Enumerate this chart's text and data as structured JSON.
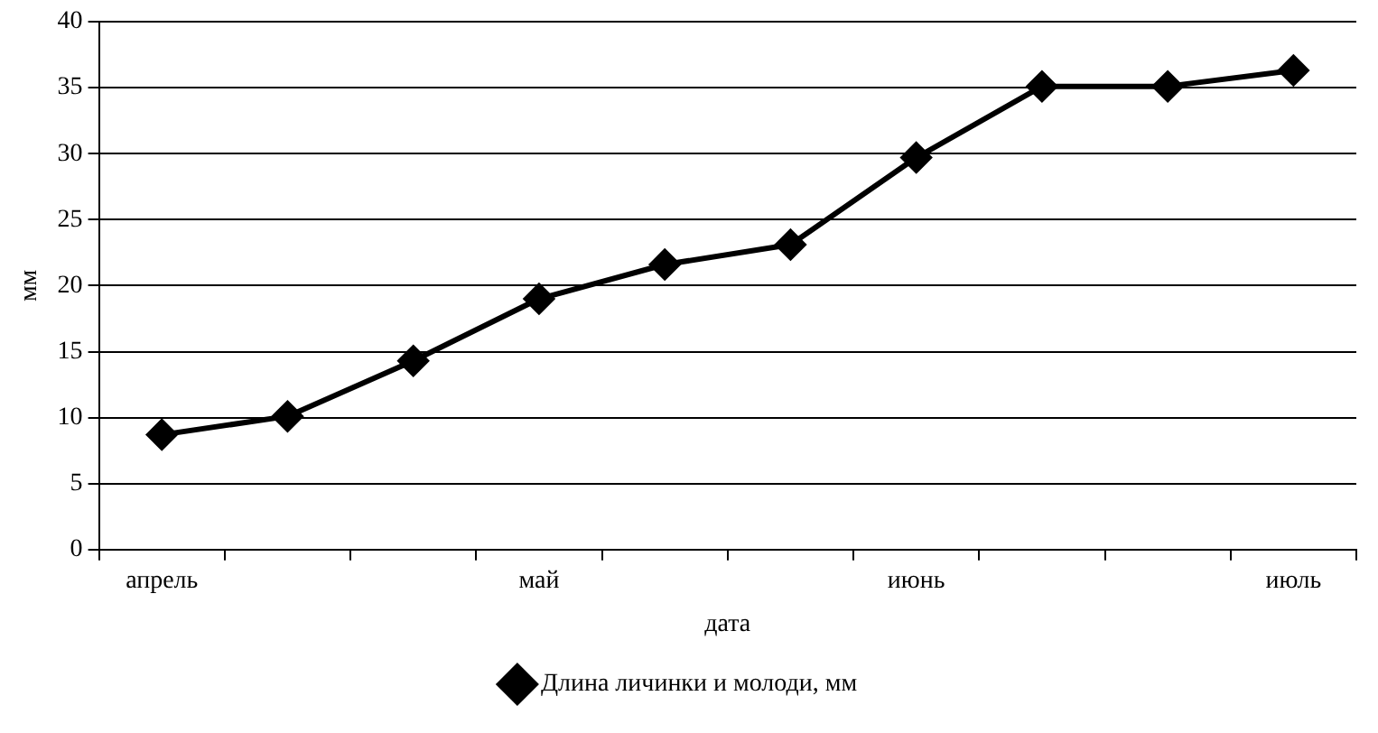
{
  "chart_data": {
    "type": "line",
    "xlabel": "дата",
    "ylabel": "мм",
    "categories": [
      "апрель",
      null,
      null,
      "май",
      null,
      null,
      "июнь",
      null,
      null,
      "июль"
    ],
    "series": [
      {
        "name": "Длина личинки и молоди, мм",
        "color": "#000000",
        "values": [
          8.7,
          10.1,
          14.3,
          19,
          21.6,
          23.1,
          29.7,
          35.1,
          35.1,
          36.3
        ]
      }
    ],
    "ylim": [
      0,
      40
    ],
    "yticks": [
      0,
      5,
      10,
      15,
      20,
      25,
      30,
      35,
      40
    ],
    "grid": "y",
    "legend": "bottom",
    "marker": "diamond",
    "line_style": "solid"
  }
}
